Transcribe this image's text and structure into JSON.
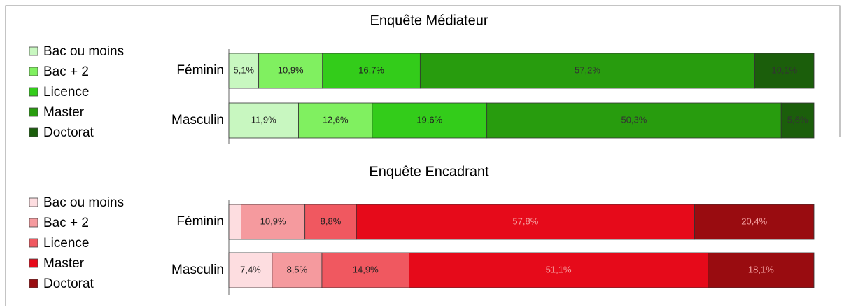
{
  "chart_data": [
    {
      "type": "bar",
      "orientation": "horizontal",
      "stacked": true,
      "title": "Enquête Médiateur",
      "categories": [
        "Féminin",
        "Masculin"
      ],
      "xlim": [
        0,
        100
      ],
      "series": [
        {
          "name": "Bac ou moins",
          "color": "#c8f7c0",
          "values": [
            5.1,
            11.9
          ],
          "value_labels": [
            "5,1%",
            "11,9%"
          ]
        },
        {
          "name": "Bac + 2",
          "color": "#80f060",
          "values": [
            10.9,
            12.6
          ],
          "value_labels": [
            "10,9%",
            "12,6%"
          ]
        },
        {
          "name": "Licence",
          "color": "#33cc1a",
          "values": [
            16.7,
            19.6
          ],
          "value_labels": [
            "16,7%",
            "19,6%"
          ]
        },
        {
          "name": "Master",
          "color": "#289c0e",
          "values": [
            57.2,
            50.3
          ],
          "value_labels": [
            "57,2%",
            "50,3%"
          ]
        },
        {
          "name": "Doctorat",
          "color": "#1b5e0b",
          "values": [
            10.1,
            5.6
          ],
          "value_labels": [
            "10,1%",
            "5,6%"
          ]
        }
      ]
    },
    {
      "type": "bar",
      "orientation": "horizontal",
      "stacked": true,
      "title": "Enquête Encadrant",
      "categories": [
        "Féminin",
        "Masculin"
      ],
      "xlim": [
        0,
        100
      ],
      "series": [
        {
          "name": "Bac ou moins",
          "color": "#fddde0",
          "values": [
            2.1,
            7.4
          ],
          "value_labels": [
            null,
            "7,4%"
          ]
        },
        {
          "name": "Bac + 2",
          "color": "#f59a9e",
          "values": [
            10.9,
            8.5
          ],
          "value_labels": [
            "10,9%",
            "8,5%"
          ]
        },
        {
          "name": "Licence",
          "color": "#f05860",
          "values": [
            8.8,
            14.9
          ],
          "value_labels": [
            "8,8%",
            "14,9%"
          ]
        },
        {
          "name": "Master",
          "color": "#e60a1a",
          "values": [
            57.8,
            51.1
          ],
          "value_labels": [
            "57,8%",
            "51,1%"
          ]
        },
        {
          "name": "Doctorat",
          "color": "#990c10",
          "values": [
            20.4,
            18.1
          ],
          "value_labels": [
            "20,4%",
            "18,1%"
          ]
        }
      ]
    }
  ]
}
